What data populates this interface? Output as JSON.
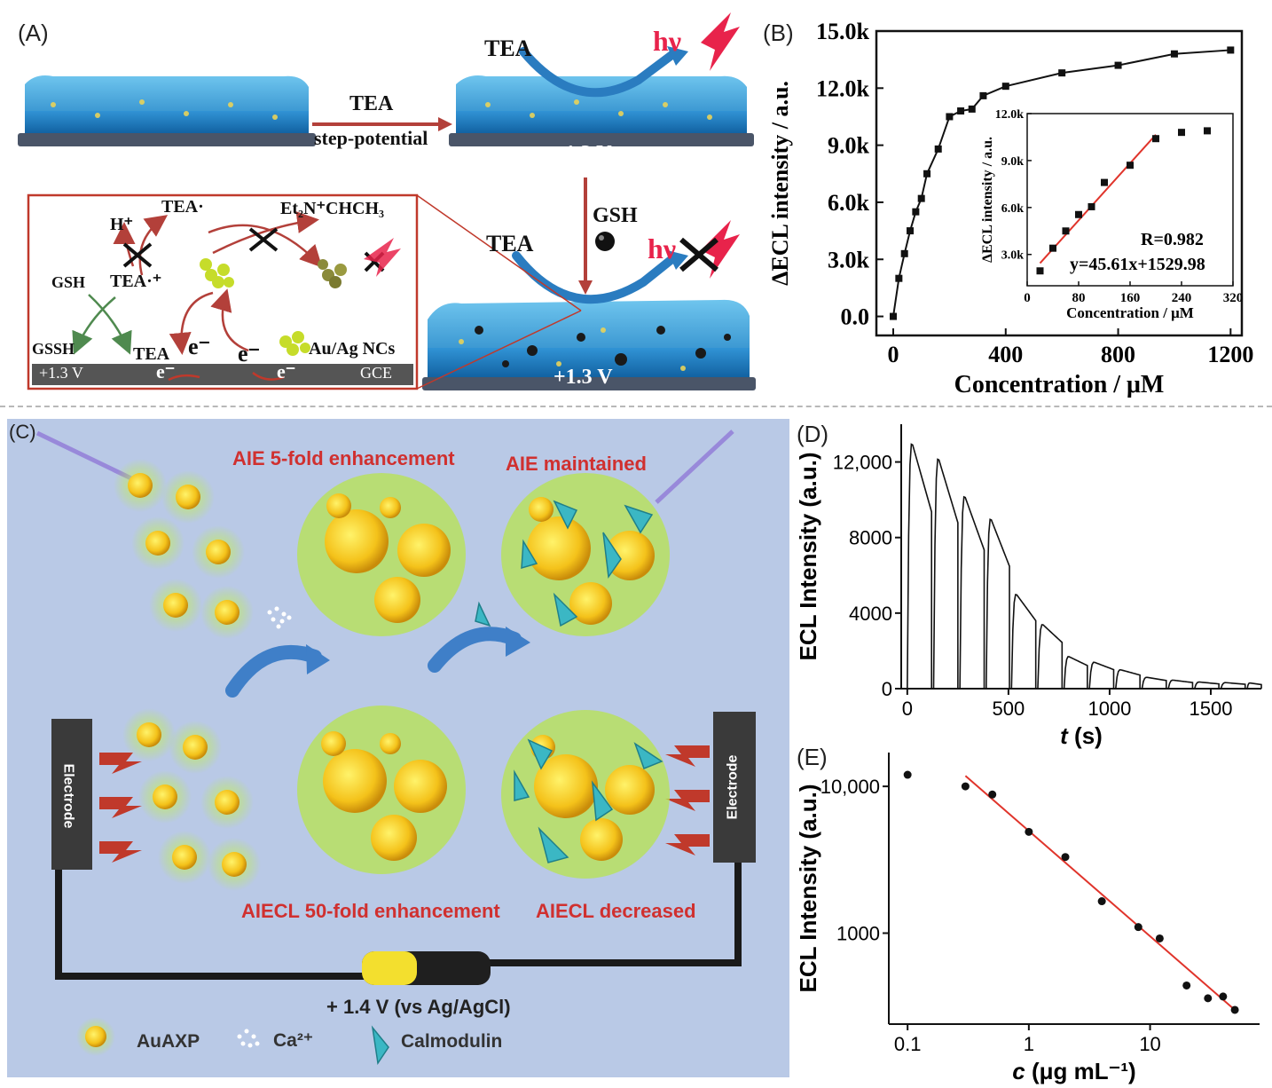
{
  "panels": {
    "a": {
      "label": "(A)",
      "arrow_top": "TEA",
      "arrow_bottom": "step-potential",
      "tea_1": "TEA",
      "tea_2": "TEA",
      "hv_1": "hν",
      "hv_2": "hν",
      "gsh": "GSH",
      "voltage_1": "+1.3 V",
      "voltage_2": "+1.3 V",
      "mech": {
        "h_plus": "H⁺",
        "tea_rad": "TEA·",
        "et2n": "Et₂N⁺CHCH₃",
        "gsh": "GSH",
        "tea_cation": "TEA·⁺",
        "gssh": "GSSH",
        "tea": "TEA",
        "e1": "e⁻",
        "e2": "e⁻",
        "e3": "e⁻",
        "e4": "e⁻",
        "nc": "Au/Ag NCs",
        "plus13": "+1.3 V",
        "gce": "GCE"
      }
    },
    "b": {
      "label": "(B)"
    },
    "c": {
      "label": "(C)",
      "aie5": "AIE 5-fold enhancement",
      "aie_maint": "AIE maintained",
      "aiecl50": "AIECL 50-fold enhancement",
      "aiecl_dec": "AIECL decreased",
      "voltage": "+ 1.4 V (vs Ag/AgCl)",
      "electrode_left": "Electrode",
      "electrode_right": "Electrode",
      "legend_auaxp": "AuAXP",
      "legend_ca": "Ca²⁺",
      "legend_calm": "Calmodulin"
    },
    "d": {
      "label": "(D)"
    },
    "e": {
      "label": "(E)"
    }
  },
  "chart_data": [
    {
      "type": "line",
      "panel": "B",
      "xlabel": "Concentration / μM",
      "ylabel": "ΔECL intensity / a.u.",
      "xlim": [
        -60,
        1240
      ],
      "ylim": [
        -1000,
        15000
      ],
      "xticks": [
        "0",
        "400",
        "800",
        "1200"
      ],
      "yticks": [
        "0.0",
        "3.0k",
        "6.0k",
        "9.0k",
        "12.0k",
        "15.0k"
      ],
      "x": [
        0,
        20,
        40,
        60,
        80,
        100,
        120,
        160,
        200,
        240,
        280,
        320,
        400,
        600,
        800,
        1000,
        1200
      ],
      "y": [
        0,
        2000,
        3300,
        4500,
        5500,
        6200,
        7500,
        8800,
        10500,
        10800,
        10900,
        11600,
        12100,
        12800,
        13200,
        13800,
        14000
      ],
      "inset": {
        "type": "scatter",
        "xlabel": "Concentration / μM",
        "ylabel": "ΔECL intensity / a.u.",
        "xlim": [
          0,
          320
        ],
        "ylim": [
          1000,
          12000
        ],
        "xticks": [
          "0",
          "80",
          "160",
          "240",
          "320"
        ],
        "yticks": [
          "3.0k",
          "6.0k",
          "9.0k",
          "12.0k"
        ],
        "x": [
          20,
          40,
          60,
          80,
          100,
          120,
          160,
          200,
          240,
          280
        ],
        "y": [
          1950,
          3400,
          4500,
          5550,
          6050,
          7600,
          8700,
          10400,
          10800,
          10900
        ],
        "fit": {
          "slope": 45.61,
          "intercept": 1529.98,
          "x_range": [
            20,
            200
          ]
        },
        "r_text": "R=0.982",
        "eq_text": "y=45.61x+1529.98"
      }
    },
    {
      "type": "line",
      "panel": "D",
      "xlabel_italic": "t",
      "xlabel_rest": " (s)",
      "ylabel": "ECL Intensity (a.u.)",
      "xlim": [
        -30,
        1750
      ],
      "ylim": [
        0,
        14000
      ],
      "xticks": [
        "0",
        "500",
        "1000",
        "1500"
      ],
      "yticks": [
        "0",
        "4000",
        "8000",
        "12,000"
      ],
      "pulses": [
        {
          "start": 0,
          "end": 120,
          "peak": 13000
        },
        {
          "start": 130,
          "end": 250,
          "peak": 12200
        },
        {
          "start": 260,
          "end": 380,
          "peak": 10200
        },
        {
          "start": 390,
          "end": 505,
          "peak": 9000
        },
        {
          "start": 515,
          "end": 635,
          "peak": 5000
        },
        {
          "start": 645,
          "end": 765,
          "peak": 3400
        },
        {
          "start": 775,
          "end": 890,
          "peak": 1700
        },
        {
          "start": 900,
          "end": 1020,
          "peak": 1400
        },
        {
          "start": 1030,
          "end": 1150,
          "peak": 1000
        },
        {
          "start": 1160,
          "end": 1280,
          "peak": 600
        },
        {
          "start": 1290,
          "end": 1410,
          "peak": 450
        },
        {
          "start": 1420,
          "end": 1540,
          "peak": 350
        },
        {
          "start": 1550,
          "end": 1670,
          "peak": 320
        },
        {
          "start": 1680,
          "end": 1750,
          "peak": 300
        }
      ]
    },
    {
      "type": "scatter",
      "panel": "E",
      "xscale": "log",
      "yscale": "log",
      "xlabel_italic": "c",
      "xlabel_rest": " (μg mL⁻¹)",
      "ylabel": "ECL Intensity (a.u.)",
      "xlim": [
        0.07,
        80
      ],
      "ylim": [
        240,
        17000
      ],
      "xticks": [
        {
          "v": 0.1,
          "t": "0.1"
        },
        {
          "v": 1,
          "t": "1"
        },
        {
          "v": 10,
          "t": "10"
        }
      ],
      "yticks": [
        {
          "v": 1000,
          "t": "1000"
        },
        {
          "v": 10000,
          "t": "10,000"
        }
      ],
      "x": [
        0.1,
        0.3,
        0.5,
        1,
        2,
        4,
        8,
        12,
        20,
        30,
        40,
        50
      ],
      "y": [
        12000,
        10000,
        8800,
        4900,
        3300,
        1650,
        1100,
        920,
        440,
        360,
        370,
        300
      ],
      "fit": {
        "x": [
          0.3,
          50
        ],
        "y": [
          11800,
          300
        ]
      }
    }
  ]
}
